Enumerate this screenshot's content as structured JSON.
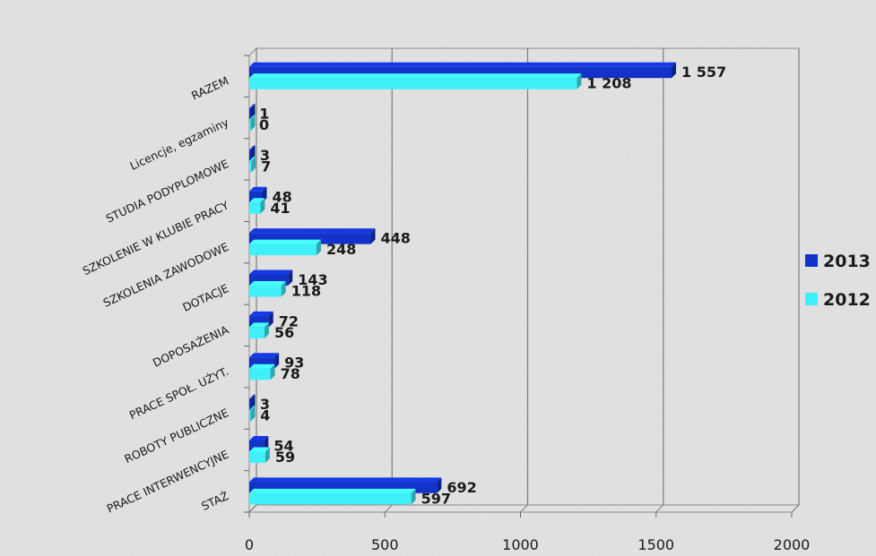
{
  "chart_data": {
    "type": "bar",
    "orientation": "horizontal",
    "categories": [
      "RAZEM",
      "Licencje, egzaminy",
      "STUDIA PODYPLOMOWE",
      "SZKOLENIE W KLUBIE PRACY",
      "SZKOLENIA ZAWODOWE",
      "DOTACJE",
      "DOPOSAŻENIA",
      "PRACE SPOŁ. UŻYT.",
      "ROBOTY PUBLICZNE",
      "PRACE INTERWENCYJNE",
      "STAŻ"
    ],
    "series": [
      {
        "name": "2013",
        "color": "#1232c8",
        "values": [
          1557,
          1,
          3,
          48,
          448,
          143,
          72,
          93,
          3,
          54,
          692
        ],
        "value_labels": [
          "1 557",
          "1",
          "3",
          "48",
          "448",
          "143",
          "72",
          "93",
          "3",
          "54",
          "692"
        ]
      },
      {
        "name": "2012",
        "color": "#3ff0f8",
        "values": [
          1208,
          0,
          7,
          41,
          248,
          118,
          56,
          78,
          4,
          59,
          597
        ],
        "value_labels": [
          "1 208",
          "0",
          "7",
          "41",
          "248",
          "118",
          "56",
          "78",
          "4",
          "59",
          "597"
        ]
      }
    ],
    "xlim": [
      0,
      2000
    ],
    "xticks": [
      0,
      500,
      1000,
      1500,
      2000
    ],
    "xtick_labels": [
      "0",
      "500",
      "1000",
      "1500",
      "2000"
    ],
    "title": "",
    "xlabel": "",
    "ylabel": "",
    "grid": true,
    "legend_position": "right",
    "style": "3d"
  }
}
